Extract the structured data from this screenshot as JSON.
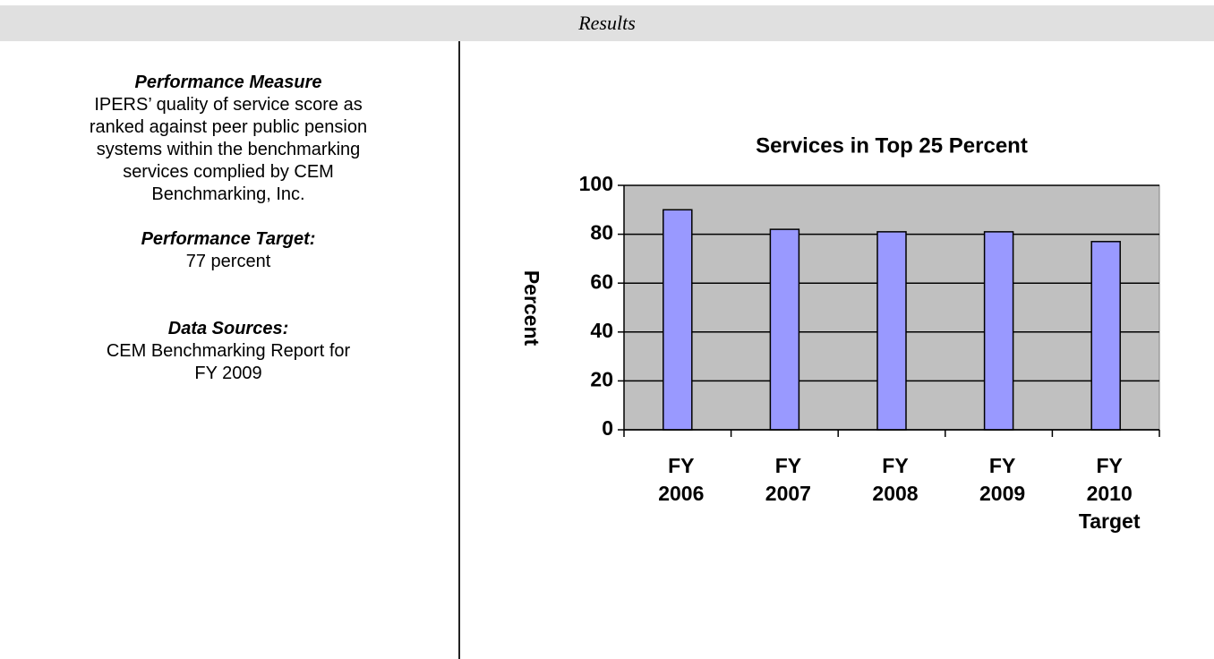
{
  "header": {
    "title": "Results"
  },
  "left": {
    "measure_heading": "Performance Measure",
    "measure_text": "IPERS’ quality of service score as ranked against peer public pension systems within the benchmarking services complied by CEM Benchmarking, Inc.",
    "target_heading": "Performance Target:",
    "target_text": "77 percent",
    "sources_heading": "Data Sources:",
    "sources_text": "CEM Benchmarking Report for FY 2009"
  },
  "chart_data": {
    "type": "bar",
    "title": "Services in Top 25 Percent",
    "y_label": "Percent",
    "categories": [
      "FY 2006",
      "FY 2007",
      "FY 2008",
      "FY 2009",
      "FY 2010 Target"
    ],
    "values": [
      90,
      82,
      81,
      81,
      77
    ],
    "color": "#9999ff",
    "ylim": [
      0,
      100
    ],
    "yticks": [
      0,
      20,
      40,
      60,
      80,
      100
    ],
    "grid": true
  }
}
